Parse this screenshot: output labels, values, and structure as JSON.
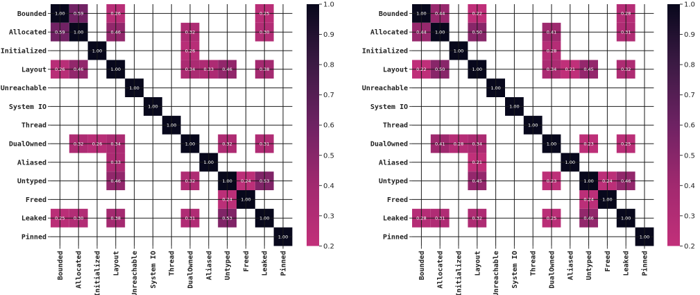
{
  "chart_data": [
    {
      "type": "heatmap",
      "categories": [
        "Bounded",
        "Allocated",
        "Initialized",
        "Layout",
        "Unreachable",
        "System IO",
        "Thread",
        "DualOwned",
        "Aliased",
        "Untyped",
        "Freed",
        "Leaked",
        "Pinned"
      ],
      "colorbar": {
        "min": 0.2,
        "max": 1.0,
        "ticks": [
          "0.2",
          "0.3",
          "0.4",
          "0.5",
          "0.6",
          "0.7",
          "0.8",
          "0.9",
          "1.0"
        ]
      },
      "blank_below": 0.2,
      "values": [
        [
          1.0,
          0.59,
          null,
          0.26,
          null,
          null,
          null,
          null,
          null,
          null,
          null,
          0.25,
          null
        ],
        [
          0.59,
          1.0,
          null,
          0.46,
          null,
          null,
          null,
          0.32,
          null,
          null,
          null,
          0.3,
          null
        ],
        [
          null,
          null,
          1.0,
          null,
          null,
          null,
          null,
          0.26,
          null,
          null,
          null,
          null,
          null
        ],
        [
          0.26,
          0.46,
          null,
          1.0,
          null,
          null,
          null,
          0.34,
          0.33,
          0.46,
          null,
          0.38,
          null
        ],
        [
          null,
          null,
          null,
          null,
          1.0,
          null,
          null,
          null,
          null,
          null,
          null,
          null,
          null
        ],
        [
          null,
          null,
          null,
          null,
          null,
          1.0,
          null,
          null,
          null,
          null,
          null,
          null,
          null
        ],
        [
          null,
          null,
          null,
          null,
          null,
          null,
          1.0,
          null,
          null,
          null,
          null,
          null,
          null
        ],
        [
          null,
          0.32,
          0.26,
          0.34,
          null,
          null,
          null,
          1.0,
          null,
          0.32,
          null,
          0.31,
          null
        ],
        [
          null,
          null,
          null,
          0.33,
          null,
          null,
          null,
          null,
          1.0,
          null,
          null,
          null,
          null
        ],
        [
          null,
          null,
          null,
          0.46,
          null,
          null,
          null,
          0.32,
          null,
          1.0,
          0.24,
          0.53,
          null
        ],
        [
          null,
          null,
          null,
          null,
          null,
          null,
          null,
          null,
          null,
          0.24,
          1.0,
          null,
          null
        ],
        [
          0.25,
          0.3,
          null,
          0.38,
          null,
          null,
          null,
          0.31,
          null,
          0.53,
          null,
          1.0,
          null
        ],
        [
          null,
          null,
          null,
          null,
          null,
          null,
          null,
          null,
          null,
          null,
          null,
          null,
          1.0
        ]
      ],
      "labels": [
        [
          "1.00",
          "0.59",
          "",
          "0.26",
          "",
          "",
          "",
          "",
          "",
          "",
          "",
          "0.25",
          ""
        ],
        [
          "0.59",
          "1.00",
          "",
          "0.46",
          "",
          "",
          "",
          "0.32",
          "",
          "",
          "",
          "0.30",
          ""
        ],
        [
          "",
          "",
          "1.00",
          "",
          "",
          "",
          "",
          "0.26",
          "",
          "",
          "",
          "",
          ""
        ],
        [
          "0.26",
          "0.46",
          "",
          "1.00",
          "",
          "",
          "",
          "0.34",
          "0.33",
          "0.46",
          "",
          "0.38",
          ""
        ],
        [
          "",
          "",
          "",
          "",
          "1.00",
          "",
          "",
          "",
          "",
          "",
          "",
          "",
          ""
        ],
        [
          "",
          "",
          "",
          "",
          "",
          "1.00",
          "",
          "",
          "",
          "",
          "",
          "",
          ""
        ],
        [
          "",
          "",
          "",
          "",
          "",
          "",
          "1.00",
          "",
          "",
          "",
          "",
          "",
          ""
        ],
        [
          "",
          "0.32",
          "0.26",
          "0.34",
          "",
          "",
          "",
          "1.00",
          "",
          "0.32",
          "",
          "0.31",
          ""
        ],
        [
          "",
          "",
          "",
          "0.33",
          "",
          "",
          "",
          "",
          "1.00",
          "",
          "",
          "",
          ""
        ],
        [
          "",
          "",
          "",
          "0.46",
          "",
          "",
          "",
          "0.32",
          "",
          "1.00",
          "0.24",
          "0.53",
          ""
        ],
        [
          "",
          "",
          "",
          "",
          "",
          "",
          "",
          "",
          "",
          "0.24",
          "1.00",
          "",
          ""
        ],
        [
          "0.25",
          "0.30",
          "",
          "0.38",
          "",
          "",
          "",
          "0.31",
          "",
          "0.53",
          "",
          "1.00",
          ""
        ],
        [
          "",
          "",
          "",
          "",
          "",
          "",
          "",
          "",
          "",
          "",
          "",
          "",
          "1.00"
        ]
      ]
    },
    {
      "type": "heatmap",
      "categories": [
        "Bounded",
        "Allocated",
        "Initialized",
        "Layout",
        "Unreachable",
        "System IO",
        "Thread",
        "DualOwned",
        "Aliased",
        "Untyped",
        "Freed",
        "Leaked",
        "Pinned"
      ],
      "colorbar": {
        "min": 0.2,
        "max": 1.0,
        "ticks": [
          "0.2",
          "0.3",
          "0.4",
          "0.5",
          "0.6",
          "0.7",
          "0.8",
          "0.9",
          "1.0"
        ]
      },
      "blank_below": 0.2,
      "values": [
        [
          1.0,
          0.44,
          null,
          0.22,
          null,
          null,
          null,
          null,
          null,
          null,
          null,
          0.28,
          null
        ],
        [
          0.44,
          1.0,
          null,
          0.5,
          null,
          null,
          null,
          0.41,
          null,
          null,
          null,
          0.31,
          null
        ],
        [
          null,
          null,
          1.0,
          null,
          null,
          null,
          null,
          0.28,
          null,
          null,
          null,
          null,
          null
        ],
        [
          0.22,
          0.5,
          null,
          1.0,
          null,
          null,
          null,
          0.34,
          0.21,
          0.45,
          null,
          0.32,
          null
        ],
        [
          null,
          null,
          null,
          null,
          1.0,
          null,
          null,
          null,
          null,
          null,
          null,
          null,
          null
        ],
        [
          null,
          null,
          null,
          null,
          null,
          1.0,
          null,
          null,
          null,
          null,
          null,
          null,
          null
        ],
        [
          null,
          null,
          null,
          null,
          null,
          null,
          1.0,
          null,
          null,
          null,
          null,
          null,
          null
        ],
        [
          null,
          0.41,
          0.28,
          0.34,
          null,
          null,
          null,
          1.0,
          null,
          0.23,
          null,
          0.25,
          null
        ],
        [
          null,
          null,
          null,
          0.21,
          null,
          null,
          null,
          null,
          1.0,
          null,
          null,
          null,
          null
        ],
        [
          null,
          null,
          null,
          0.45,
          null,
          null,
          null,
          0.23,
          null,
          1.0,
          0.24,
          0.46,
          null
        ],
        [
          null,
          null,
          null,
          null,
          null,
          null,
          null,
          null,
          null,
          0.24,
          1.0,
          null,
          null
        ],
        [
          0.28,
          0.31,
          null,
          0.32,
          null,
          null,
          null,
          0.25,
          null,
          0.46,
          null,
          1.0,
          null
        ],
        [
          null,
          null,
          null,
          null,
          null,
          null,
          null,
          null,
          null,
          null,
          null,
          null,
          1.0
        ]
      ],
      "labels": [
        [
          "1.00",
          "0.44",
          "",
          "0.22",
          "",
          "",
          "",
          "",
          "",
          "",
          "",
          "0.28",
          ""
        ],
        [
          "0.44",
          "1.00",
          "",
          "0.50",
          "",
          "",
          "",
          "0.41",
          "",
          "",
          "",
          "0.31",
          ""
        ],
        [
          "",
          "",
          "1.00",
          "",
          "",
          "",
          "",
          "0.28",
          "",
          "",
          "",
          "",
          ""
        ],
        [
          "0.22",
          "0.50",
          "",
          "1.00",
          "",
          "",
          "",
          "0.34",
          "0.21",
          "0.45",
          "",
          "0.32",
          ""
        ],
        [
          "",
          "",
          "",
          "",
          "1.00",
          "",
          "",
          "",
          "",
          "",
          "",
          "",
          ""
        ],
        [
          "",
          "",
          "",
          "",
          "",
          "1.00",
          "",
          "",
          "",
          "",
          "",
          "",
          ""
        ],
        [
          "",
          "",
          "",
          "",
          "",
          "",
          "1.00",
          "",
          "",
          "",
          "",
          "",
          ""
        ],
        [
          "",
          "0.41",
          "0.28",
          "0.34",
          "",
          "",
          "",
          "1.00",
          "",
          "0.23",
          "",
          "0.25",
          ""
        ],
        [
          "",
          "",
          "",
          "0.21",
          "",
          "",
          "",
          "",
          "1.00",
          "",
          "",
          "",
          ""
        ],
        [
          "",
          "",
          "",
          "0.45",
          "",
          "",
          "",
          "0.23",
          "",
          "1.00",
          "0.24",
          "0.46",
          ""
        ],
        [
          "",
          "",
          "",
          "",
          "",
          "",
          "",
          "",
          "",
          "0.24",
          "1.00",
          "",
          ""
        ],
        [
          "0.28",
          "0.31",
          "",
          "0.32",
          "",
          "",
          "",
          "0.25",
          "",
          "0.46",
          "",
          "1.00",
          ""
        ],
        [
          "",
          "",
          "",
          "",
          "",
          "",
          "",
          "",
          "",
          "",
          "",
          "",
          "1.00"
        ]
      ]
    }
  ]
}
